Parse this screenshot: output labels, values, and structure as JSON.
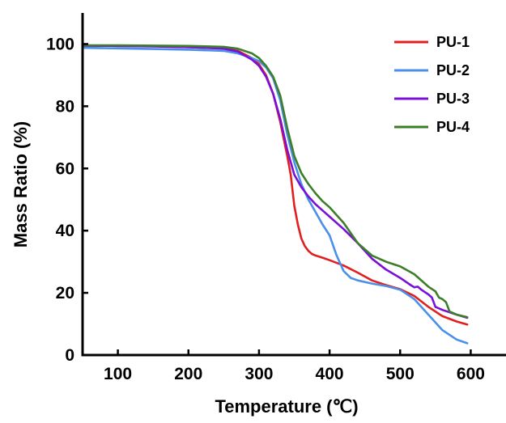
{
  "chart_data": {
    "type": "line",
    "title": "",
    "xlabel": "Temperature (℃)",
    "ylabel": "Mass Ratio (%)",
    "xlim": [
      50,
      650
    ],
    "ylim": [
      0,
      110
    ],
    "xticks": [
      100,
      200,
      300,
      400,
      500,
      600
    ],
    "yticks": [
      0,
      20,
      40,
      60,
      80,
      100
    ],
    "grid": false,
    "legend_position": "top-right",
    "series": [
      {
        "name": "PU-1",
        "color": "#e02020",
        "x": [
          50,
          100,
          150,
          200,
          250,
          270,
          290,
          300,
          310,
          320,
          330,
          340,
          345,
          350,
          355,
          360,
          365,
          370,
          375,
          380,
          390,
          400,
          420,
          440,
          460,
          480,
          500,
          520,
          540,
          560,
          580,
          595
        ],
        "y": [
          99.5,
          99.4,
          99.3,
          99.0,
          98.6,
          97.8,
          95.5,
          93.5,
          90.0,
          84.0,
          75.0,
          64.0,
          58.0,
          48.0,
          42.0,
          37.5,
          35.0,
          33.5,
          32.5,
          32.0,
          31.3,
          30.5,
          28.8,
          26.5,
          24.0,
          22.5,
          21.2,
          19.0,
          15.5,
          12.5,
          10.8,
          9.8
        ]
      },
      {
        "name": "PU-2",
        "color": "#4a8fea",
        "x": [
          50,
          100,
          150,
          200,
          250,
          270,
          290,
          300,
          310,
          320,
          330,
          340,
          350,
          360,
          370,
          380,
          390,
          400,
          410,
          420,
          430,
          440,
          460,
          480,
          500,
          520,
          540,
          560,
          580,
          595
        ],
        "y": [
          98.8,
          98.6,
          98.4,
          98.2,
          97.8,
          97.0,
          95.5,
          94.5,
          92.5,
          89.0,
          82.0,
          71.0,
          62.0,
          55.0,
          50.0,
          46.0,
          42.0,
          38.5,
          32.0,
          27.0,
          24.8,
          24.0,
          23.0,
          22.2,
          21.0,
          18.0,
          13.0,
          8.0,
          5.0,
          3.8
        ]
      },
      {
        "name": "PU-3",
        "color": "#7a10d8",
        "x": [
          50,
          100,
          150,
          200,
          250,
          270,
          290,
          300,
          310,
          320,
          330,
          340,
          350,
          360,
          370,
          380,
          390,
          400,
          420,
          440,
          460,
          480,
          500,
          515,
          520,
          525,
          530,
          540,
          545,
          550,
          560,
          580,
          595
        ],
        "y": [
          99.5,
          99.4,
          99.2,
          99.0,
          98.5,
          97.6,
          95.0,
          93.0,
          89.5,
          84.0,
          76.0,
          66.0,
          58.0,
          54.0,
          51.0,
          48.5,
          46.5,
          44.5,
          40.5,
          36.0,
          31.0,
          27.5,
          24.8,
          22.5,
          21.8,
          22.0,
          21.0,
          19.5,
          18.5,
          15.5,
          14.5,
          13.0,
          12.0
        ]
      },
      {
        "name": "PU-4",
        "color": "#3d7e2a",
        "x": [
          50,
          100,
          150,
          200,
          250,
          270,
          290,
          300,
          310,
          320,
          330,
          340,
          350,
          360,
          370,
          380,
          390,
          400,
          420,
          440,
          460,
          480,
          500,
          520,
          540,
          550,
          555,
          560,
          565,
          570,
          580,
          595
        ],
        "y": [
          99.6,
          99.6,
          99.5,
          99.4,
          99.1,
          98.5,
          97.0,
          95.5,
          93.0,
          89.5,
          83.5,
          73.0,
          64.0,
          58.5,
          55.0,
          52.0,
          49.5,
          47.5,
          42.5,
          36.0,
          32.0,
          30.0,
          28.5,
          26.0,
          22.0,
          20.5,
          18.5,
          18.0,
          17.0,
          14.0,
          13.0,
          12.2
        ]
      }
    ]
  }
}
